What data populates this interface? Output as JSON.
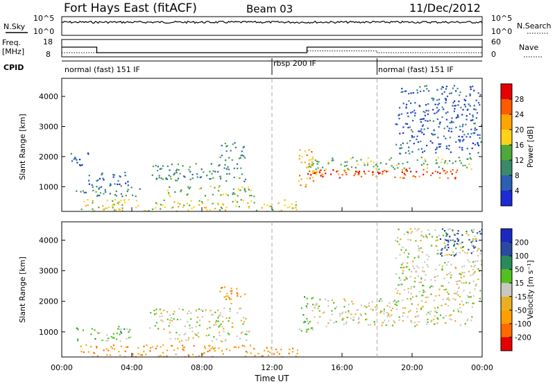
{
  "header": {
    "station": "Fort Hays East (fitACF)",
    "beam": "Beam 03",
    "date": "11/Dec/2012"
  },
  "top_panel": {
    "left_label": "N.Sky",
    "right_label": "N.Search",
    "left_ticks": [
      "10^5",
      "10^0"
    ],
    "right_ticks": [
      "10^5",
      "10^0"
    ]
  },
  "freq_panel": {
    "left_label_line1": "Freq.",
    "left_label_line2": "[MHz]",
    "right_label": "Nave",
    "left_ticks": [
      "18",
      "8"
    ],
    "right_ticks": [
      "60",
      "0"
    ]
  },
  "cpid_panel": {
    "label": "CPID",
    "segments": [
      "normal (fast) 151 IF",
      "rbsp 200 IF",
      "normal (fast) 151 IF"
    ]
  },
  "x_axis": {
    "label": "Time UT",
    "ticks": [
      "00:00",
      "04:00",
      "08:00",
      "12:00",
      "16:00",
      "20:00",
      "00:00"
    ]
  },
  "power_panel": {
    "ylabel": "Slant Range [km]",
    "yticks": [
      "1000",
      "2000",
      "3000",
      "4000"
    ],
    "colorbar_label": "Power [dB]",
    "colorbar_ticks": [
      "4",
      "8",
      "12",
      "16",
      "20",
      "24",
      "28"
    ],
    "colorbar_colors": [
      "#1c2bd6",
      "#2b5fb0",
      "#3a8a6a",
      "#4fa83c",
      "#ffd21a",
      "#ffa500",
      "#ff5a00",
      "#e60000"
    ]
  },
  "velocity_panel": {
    "ylabel": "Slant Range [km]",
    "yticks": [
      "1000",
      "2000",
      "3000",
      "4000"
    ],
    "colorbar_label": "Velocity [m s⁻¹]",
    "colorbar_ticks": [
      "-200",
      "-100",
      "-50",
      "-15",
      "15",
      "50",
      "100",
      "200"
    ],
    "colorbar_colors": [
      "#e60000",
      "#ff6a00",
      "#ff9e00",
      "#e8b020",
      "#c8c8c0",
      "#54c020",
      "#2a8a5a",
      "#2a4aa0",
      "#1a2ac0"
    ]
  },
  "chart_data": {
    "type": "heatmap",
    "x_range_hours": [
      0,
      24
    ],
    "y_range_km": [
      180,
      4600
    ],
    "cpid_boundaries_hours": [
      12,
      18
    ],
    "frequency_MHz": [
      {
        "start": 0,
        "end": 2,
        "value": 14
      },
      {
        "start": 2,
        "end": 14,
        "value": 10
      },
      {
        "start": 14,
        "end": 24,
        "value": 14
      }
    ],
    "nave": [
      {
        "start": 0,
        "end": 14,
        "value": 12
      },
      {
        "start": 14,
        "end": 18,
        "value": 20
      },
      {
        "start": 18,
        "end": 24,
        "value": 12
      }
    ],
    "power_echoes": [
      {
        "t0": 0.5,
        "t1": 1.5,
        "r0": 1700,
        "r1": 2200,
        "level": 1
      },
      {
        "t0": 0.8,
        "t1": 4.5,
        "r0": 700,
        "r1": 1100,
        "level": 2
      },
      {
        "t0": 1.5,
        "t1": 4.0,
        "r0": 1100,
        "r1": 1500,
        "level": 1
      },
      {
        "t0": 5.0,
        "t1": 10.5,
        "r0": 1200,
        "r1": 1800,
        "level": 2
      },
      {
        "t0": 6.0,
        "t1": 11.0,
        "r0": 700,
        "r1": 1050,
        "level": 3
      },
      {
        "t0": 9.0,
        "t1": 10.5,
        "r0": 1900,
        "r1": 2500,
        "level": 2
      },
      {
        "t0": 1.0,
        "t1": 13.5,
        "r0": 200,
        "r1": 600,
        "level": 4
      },
      {
        "t0": 13.5,
        "t1": 14.5,
        "r0": 1000,
        "r1": 2300,
        "level": 5
      },
      {
        "t0": 14.0,
        "t1": 23.0,
        "r0": 1300,
        "r1": 1600,
        "level": 6
      },
      {
        "t0": 14.0,
        "t1": 23.5,
        "r0": 1600,
        "r1": 2000,
        "level": 3
      },
      {
        "t0": 14.0,
        "t1": 22.5,
        "r0": 1450,
        "r1": 1550,
        "level": 7
      },
      {
        "t0": 19.0,
        "t1": 24.0,
        "r0": 2100,
        "r1": 4400,
        "level": 1
      }
    ],
    "velocity_echoes": [
      {
        "t0": 0.8,
        "t1": 4.0,
        "r0": 700,
        "r1": 1200,
        "level": 5
      },
      {
        "t0": 5.0,
        "t1": 10.5,
        "r0": 1100,
        "r1": 1800,
        "level": 4
      },
      {
        "t0": 6.0,
        "t1": 11.0,
        "r0": 700,
        "r1": 1050,
        "level": 4
      },
      {
        "t0": 9.0,
        "t1": 10.5,
        "r0": 1900,
        "r1": 2500,
        "level": 2
      },
      {
        "t0": 1.0,
        "t1": 13.5,
        "r0": 200,
        "r1": 600,
        "level": 2
      },
      {
        "t0": 13.5,
        "t1": 14.3,
        "r0": 1000,
        "r1": 2300,
        "level": 5
      },
      {
        "t0": 14.3,
        "t1": 23.5,
        "r0": 1200,
        "r1": 2100,
        "level": 4
      },
      {
        "t0": 19.0,
        "t1": 24.0,
        "r0": 2100,
        "r1": 4400,
        "level": 4
      },
      {
        "t0": 21.5,
        "t1": 24.0,
        "r0": 3500,
        "r1": 4400,
        "level": 7
      }
    ]
  }
}
